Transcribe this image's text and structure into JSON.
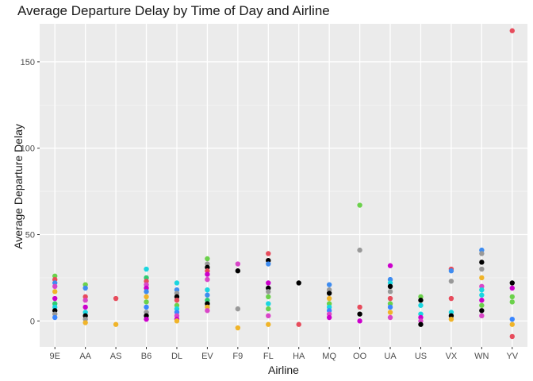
{
  "chart_data": {
    "type": "scatter",
    "title": "Average Departure Delay by Time of Day and Airline",
    "xlabel": "Airline",
    "ylabel": "Average Departure Delay",
    "categories": [
      "9E",
      "AA",
      "AS",
      "B6",
      "DL",
      "EV",
      "F9",
      "FL",
      "HA",
      "MQ",
      "OO",
      "UA",
      "US",
      "VX",
      "WN",
      "YV"
    ],
    "ylim": [
      -15,
      172
    ],
    "yticks": [
      0,
      50,
      100,
      150
    ],
    "grid": true,
    "legend": "none",
    "colors": [
      "#ff0000",
      "#d4a017",
      "#e6ab02",
      "#7cae00",
      "#00ba38",
      "#00c08b",
      "#00bfc4",
      "#00a9ff",
      "#619cff",
      "#c77cff",
      "#f564e3",
      "#ff64b0",
      "#000000",
      "#808080"
    ],
    "points": [
      {
        "x": "9E",
        "y": 26,
        "c": "#6bd14b"
      },
      {
        "x": "9E",
        "y": 24,
        "c": "#e74c5c"
      },
      {
        "x": "9E",
        "y": 22,
        "c": "#3f8cf0"
      },
      {
        "x": "9E",
        "y": 20,
        "c": "#d946c8"
      },
      {
        "x": "9E",
        "y": 17,
        "c": "#f0b429"
      },
      {
        "x": "9E",
        "y": 13,
        "c": "#cc00cc"
      },
      {
        "x": "9E",
        "y": 10,
        "c": "#2ecc71"
      },
      {
        "x": "9E",
        "y": 8,
        "c": "#1ad6e0"
      },
      {
        "x": "9E",
        "y": 6,
        "c": "#000000"
      },
      {
        "x": "9E",
        "y": 4,
        "c": "#999999"
      },
      {
        "x": "9E",
        "y": 2,
        "c": "#3a86ff"
      },
      {
        "x": "AA",
        "y": 21,
        "c": "#6bd14b"
      },
      {
        "x": "AA",
        "y": 19,
        "c": "#3f8cf0"
      },
      {
        "x": "AA",
        "y": 14,
        "c": "#e74c5c"
      },
      {
        "x": "AA",
        "y": 12,
        "c": "#d946c8"
      },
      {
        "x": "AA",
        "y": 8,
        "c": "#cc00cc"
      },
      {
        "x": "AA",
        "y": 5,
        "c": "#1ad6e0"
      },
      {
        "x": "AA",
        "y": 3,
        "c": "#000000"
      },
      {
        "x": "AA",
        "y": 1,
        "c": "#999999"
      },
      {
        "x": "AA",
        "y": -1,
        "c": "#f0b429"
      },
      {
        "x": "AS",
        "y": 13,
        "c": "#e74c5c"
      },
      {
        "x": "AS",
        "y": -2,
        "c": "#f0b429"
      },
      {
        "x": "B6",
        "y": 30,
        "c": "#1ad6e0"
      },
      {
        "x": "B6",
        "y": 25,
        "c": "#2ecc71"
      },
      {
        "x": "B6",
        "y": 23,
        "c": "#e74c5c"
      },
      {
        "x": "B6",
        "y": 21,
        "c": "#d946c8"
      },
      {
        "x": "B6",
        "y": 19,
        "c": "#cc00cc"
      },
      {
        "x": "B6",
        "y": 17,
        "c": "#3f8cf0"
      },
      {
        "x": "B6",
        "y": 14,
        "c": "#f0b429"
      },
      {
        "x": "B6",
        "y": 11,
        "c": "#6bd14b"
      },
      {
        "x": "B6",
        "y": 8,
        "c": "#3a86ff"
      },
      {
        "x": "B6",
        "y": 5,
        "c": "#999999"
      },
      {
        "x": "B6",
        "y": 3,
        "c": "#000000"
      },
      {
        "x": "B6",
        "y": 1,
        "c": "#cc00cc"
      },
      {
        "x": "DL",
        "y": 22,
        "c": "#1ad6e0"
      },
      {
        "x": "DL",
        "y": 18,
        "c": "#3f8cf0"
      },
      {
        "x": "DL",
        "y": 16,
        "c": "#999999"
      },
      {
        "x": "DL",
        "y": 14,
        "c": "#000000"
      },
      {
        "x": "DL",
        "y": 12,
        "c": "#e74c5c"
      },
      {
        "x": "DL",
        "y": 9,
        "c": "#6bd14b"
      },
      {
        "x": "DL",
        "y": 7,
        "c": "#1ad6e0"
      },
      {
        "x": "DL",
        "y": 5,
        "c": "#3a86ff"
      },
      {
        "x": "DL",
        "y": 3,
        "c": "#d946c8"
      },
      {
        "x": "DL",
        "y": 1,
        "c": "#cc00cc"
      },
      {
        "x": "DL",
        "y": 0,
        "c": "#f0b429"
      },
      {
        "x": "EV",
        "y": 36,
        "c": "#6bd14b"
      },
      {
        "x": "EV",
        "y": 33,
        "c": "#999999"
      },
      {
        "x": "EV",
        "y": 31,
        "c": "#000000"
      },
      {
        "x": "EV",
        "y": 29,
        "c": "#e74c5c"
      },
      {
        "x": "EV",
        "y": 27,
        "c": "#cc00cc"
      },
      {
        "x": "EV",
        "y": 24,
        "c": "#d946c8"
      },
      {
        "x": "EV",
        "y": 18,
        "c": "#1ad6e0"
      },
      {
        "x": "EV",
        "y": 15,
        "c": "#3f8cf0"
      },
      {
        "x": "EV",
        "y": 12,
        "c": "#2ecc71"
      },
      {
        "x": "EV",
        "y": 10,
        "c": "#000000"
      },
      {
        "x": "EV",
        "y": 8,
        "c": "#f0b429"
      },
      {
        "x": "EV",
        "y": 6,
        "c": "#d946c8"
      },
      {
        "x": "F9",
        "y": 33,
        "c": "#d946c8"
      },
      {
        "x": "F9",
        "y": 29,
        "c": "#000000"
      },
      {
        "x": "F9",
        "y": 7,
        "c": "#999999"
      },
      {
        "x": "F9",
        "y": -4,
        "c": "#f0b429"
      },
      {
        "x": "FL",
        "y": 39,
        "c": "#e74c5c"
      },
      {
        "x": "FL",
        "y": 35,
        "c": "#000000"
      },
      {
        "x": "FL",
        "y": 33,
        "c": "#3f8cf0"
      },
      {
        "x": "FL",
        "y": 22,
        "c": "#cc00cc"
      },
      {
        "x": "FL",
        "y": 19,
        "c": "#000000"
      },
      {
        "x": "FL",
        "y": 17,
        "c": "#999999"
      },
      {
        "x": "FL",
        "y": 14,
        "c": "#6bd14b"
      },
      {
        "x": "FL",
        "y": 10,
        "c": "#1ad6e0"
      },
      {
        "x": "FL",
        "y": 7,
        "c": "#6bd14b"
      },
      {
        "x": "FL",
        "y": 3,
        "c": "#d946c8"
      },
      {
        "x": "FL",
        "y": -2,
        "c": "#f0b429"
      },
      {
        "x": "HA",
        "y": 22,
        "c": "#000000"
      },
      {
        "x": "HA",
        "y": -2,
        "c": "#e74c5c"
      },
      {
        "x": "MQ",
        "y": 21,
        "c": "#3f8cf0"
      },
      {
        "x": "MQ",
        "y": 18,
        "c": "#999999"
      },
      {
        "x": "MQ",
        "y": 16,
        "c": "#000000"
      },
      {
        "x": "MQ",
        "y": 13,
        "c": "#f0b429"
      },
      {
        "x": "MQ",
        "y": 10,
        "c": "#6bd14b"
      },
      {
        "x": "MQ",
        "y": 8,
        "c": "#1ad6e0"
      },
      {
        "x": "MQ",
        "y": 6,
        "c": "#3a86ff"
      },
      {
        "x": "MQ",
        "y": 4,
        "c": "#d946c8"
      },
      {
        "x": "MQ",
        "y": 2,
        "c": "#cc00cc"
      },
      {
        "x": "OO",
        "y": 67,
        "c": "#6bd14b"
      },
      {
        "x": "OO",
        "y": 41,
        "c": "#999999"
      },
      {
        "x": "OO",
        "y": 8,
        "c": "#e74c5c"
      },
      {
        "x": "OO",
        "y": 4,
        "c": "#000000"
      },
      {
        "x": "OO",
        "y": 0,
        "c": "#cc00cc"
      },
      {
        "x": "UA",
        "y": 32,
        "c": "#cc00cc"
      },
      {
        "x": "UA",
        "y": 24,
        "c": "#3f8cf0"
      },
      {
        "x": "UA",
        "y": 22,
        "c": "#1ad6e0"
      },
      {
        "x": "UA",
        "y": 20,
        "c": "#000000"
      },
      {
        "x": "UA",
        "y": 17,
        "c": "#999999"
      },
      {
        "x": "UA",
        "y": 13,
        "c": "#e74c5c"
      },
      {
        "x": "UA",
        "y": 10,
        "c": "#6bd14b"
      },
      {
        "x": "UA",
        "y": 8,
        "c": "#3a86ff"
      },
      {
        "x": "UA",
        "y": 5,
        "c": "#f0b429"
      },
      {
        "x": "UA",
        "y": 2,
        "c": "#d946c8"
      },
      {
        "x": "US",
        "y": 14,
        "c": "#6bd14b"
      },
      {
        "x": "US",
        "y": 12,
        "c": "#000000"
      },
      {
        "x": "US",
        "y": 9,
        "c": "#1ad6e0"
      },
      {
        "x": "US",
        "y": 4,
        "c": "#1ad6e0"
      },
      {
        "x": "US",
        "y": 2,
        "c": "#cc00cc"
      },
      {
        "x": "US",
        "y": 0,
        "c": "#d946c8"
      },
      {
        "x": "US",
        "y": -2,
        "c": "#000000"
      },
      {
        "x": "VX",
        "y": 30,
        "c": "#e74c5c"
      },
      {
        "x": "VX",
        "y": 29,
        "c": "#3f8cf0"
      },
      {
        "x": "VX",
        "y": 23,
        "c": "#999999"
      },
      {
        "x": "VX",
        "y": 13,
        "c": "#e74c5c"
      },
      {
        "x": "VX",
        "y": 5,
        "c": "#1ad6e0"
      },
      {
        "x": "VX",
        "y": 3,
        "c": "#000000"
      },
      {
        "x": "VX",
        "y": 1,
        "c": "#f0b429"
      },
      {
        "x": "WN",
        "y": 41,
        "c": "#3f8cf0"
      },
      {
        "x": "WN",
        "y": 39,
        "c": "#999999"
      },
      {
        "x": "WN",
        "y": 34,
        "c": "#000000"
      },
      {
        "x": "WN",
        "y": 30,
        "c": "#999999"
      },
      {
        "x": "WN",
        "y": 25,
        "c": "#f0b429"
      },
      {
        "x": "WN",
        "y": 20,
        "c": "#d946c8"
      },
      {
        "x": "WN",
        "y": 18,
        "c": "#1ad6e0"
      },
      {
        "x": "WN",
        "y": 15,
        "c": "#1ad6e0"
      },
      {
        "x": "WN",
        "y": 12,
        "c": "#cc00cc"
      },
      {
        "x": "WN",
        "y": 9,
        "c": "#6bd14b"
      },
      {
        "x": "WN",
        "y": 6,
        "c": "#000000"
      },
      {
        "x": "WN",
        "y": 3,
        "c": "#d946c8"
      },
      {
        "x": "YV",
        "y": 168,
        "c": "#e74c5c"
      },
      {
        "x": "YV",
        "y": 22,
        "c": "#000000"
      },
      {
        "x": "YV",
        "y": 19,
        "c": "#cc00cc"
      },
      {
        "x": "YV",
        "y": 14,
        "c": "#6bd14b"
      },
      {
        "x": "YV",
        "y": 11,
        "c": "#6bd14b"
      },
      {
        "x": "YV",
        "y": 1,
        "c": "#3a86ff"
      },
      {
        "x": "YV",
        "y": -2,
        "c": "#f0b429"
      },
      {
        "x": "YV",
        "y": -9,
        "c": "#e74c5c"
      }
    ]
  }
}
